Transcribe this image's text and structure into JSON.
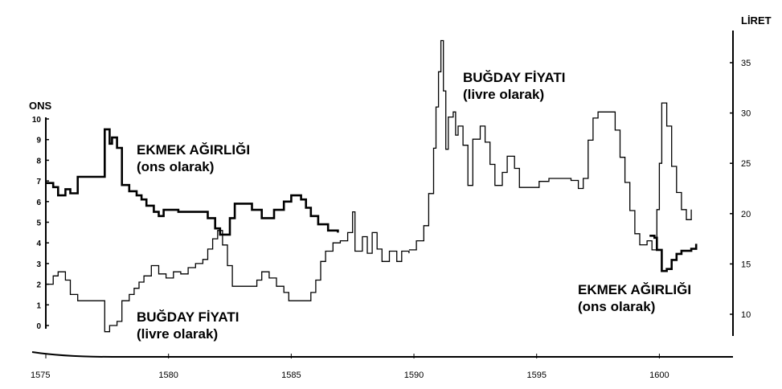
{
  "chart_data": {
    "type": "line",
    "title": "",
    "x_ticks": [
      "1575",
      "1580",
      "1585",
      "1590",
      "1595",
      "1600"
    ],
    "xlim": [
      1575,
      1603
    ],
    "y_left": {
      "label": "ONS",
      "ticks": [
        "0",
        "1",
        "2",
        "3",
        "4",
        "5",
        "6",
        "7",
        "8",
        "9",
        "10"
      ],
      "lim": [
        0,
        10
      ]
    },
    "y_right": {
      "label": "LİRET",
      "ticks": [
        "10",
        "15",
        "20",
        "25",
        "30",
        "35"
      ],
      "lim": [
        8,
        38
      ]
    },
    "annotations": {
      "bread_top": {
        "line1": "EKMEK AĞIRLIĞI",
        "line2": "(ons olarak)"
      },
      "wheat_bottom": {
        "line1": "BUĞDAY FİYATI",
        "line2": "(livre olarak)"
      },
      "wheat_top": {
        "line1": "BUĞDAY FİYATI",
        "line2": "(livre olarak)"
      },
      "bread_bottom": {
        "line1": "EKMEK AĞIRLIĞI",
        "line2": "(ons olarak)"
      }
    },
    "series": [
      {
        "axis": "left",
        "style": "thick",
        "points": [
          [
            1575.0,
            6.9
          ],
          [
            1575.3,
            6.7
          ],
          [
            1575.5,
            6.3
          ],
          [
            1575.8,
            6.6
          ],
          [
            1576.0,
            6.4
          ],
          [
            1576.3,
            7.2
          ],
          [
            1577.3,
            7.2
          ],
          [
            1577.4,
            9.5
          ],
          [
            1577.6,
            8.8
          ],
          [
            1577.7,
            9.1
          ],
          [
            1577.9,
            8.6
          ],
          [
            1578.1,
            6.8
          ],
          [
            1578.4,
            6.5
          ],
          [
            1578.7,
            6.3
          ],
          [
            1578.9,
            6.1
          ],
          [
            1579.1,
            5.8
          ],
          [
            1579.4,
            5.5
          ],
          [
            1579.6,
            5.3
          ],
          [
            1579.8,
            5.6
          ],
          [
            1580.4,
            5.5
          ],
          [
            1581.3,
            5.5
          ],
          [
            1581.6,
            5.2
          ],
          [
            1581.9,
            4.7
          ],
          [
            1582.1,
            4.4
          ],
          [
            1582.5,
            5.2
          ],
          [
            1582.7,
            5.9
          ],
          [
            1583.4,
            5.6
          ],
          [
            1583.8,
            5.2
          ],
          [
            1584.3,
            5.6
          ],
          [
            1584.7,
            6.0
          ],
          [
            1585.0,
            6.3
          ],
          [
            1585.4,
            6.1
          ],
          [
            1585.6,
            5.7
          ],
          [
            1585.8,
            5.3
          ],
          [
            1586.1,
            4.9
          ],
          [
            1586.5,
            4.6
          ],
          [
            1586.9,
            4.5
          ]
        ]
      },
      {
        "axis": "left",
        "style": "thin",
        "points": [
          [
            1575.0,
            2.0
          ],
          [
            1575.3,
            2.4
          ],
          [
            1575.5,
            2.6
          ],
          [
            1575.8,
            2.2
          ],
          [
            1576.0,
            1.5
          ],
          [
            1576.3,
            1.2
          ],
          [
            1577.2,
            1.2
          ],
          [
            1577.4,
            -0.3
          ],
          [
            1577.6,
            0.0
          ],
          [
            1577.9,
            0.2
          ],
          [
            1578.1,
            1.2
          ],
          [
            1578.4,
            1.5
          ],
          [
            1578.6,
            1.8
          ],
          [
            1578.8,
            2.1
          ],
          [
            1579.0,
            2.4
          ],
          [
            1579.3,
            2.9
          ],
          [
            1579.6,
            2.5
          ],
          [
            1579.9,
            2.3
          ],
          [
            1580.2,
            2.6
          ],
          [
            1580.5,
            2.5
          ],
          [
            1580.8,
            2.8
          ],
          [
            1581.1,
            3.0
          ],
          [
            1581.4,
            3.2
          ],
          [
            1581.6,
            3.7
          ],
          [
            1581.8,
            4.2
          ],
          [
            1582.0,
            4.6
          ],
          [
            1582.2,
            3.9
          ],
          [
            1582.4,
            2.9
          ],
          [
            1582.6,
            1.9
          ],
          [
            1583.4,
            1.9
          ],
          [
            1583.6,
            2.2
          ],
          [
            1583.8,
            2.6
          ],
          [
            1584.1,
            2.3
          ],
          [
            1584.4,
            1.9
          ],
          [
            1584.7,
            1.6
          ],
          [
            1584.9,
            1.2
          ],
          [
            1585.5,
            1.2
          ],
          [
            1585.8,
            1.6
          ],
          [
            1586.0,
            2.2
          ],
          [
            1586.2,
            3.1
          ],
          [
            1586.4,
            3.6
          ],
          [
            1586.7,
            4.0
          ],
          [
            1587.0,
            4.1
          ],
          [
            1587.3,
            4.5
          ],
          [
            1587.5,
            5.5
          ],
          [
            1587.6,
            3.6
          ],
          [
            1587.9,
            4.3
          ],
          [
            1588.1,
            3.5
          ],
          [
            1588.3,
            4.5
          ],
          [
            1588.5,
            3.7
          ],
          [
            1588.7,
            3.1
          ],
          [
            1589.0,
            3.6
          ],
          [
            1589.3,
            3.1
          ],
          [
            1589.5,
            3.6
          ],
          [
            1589.8,
            3.5
          ]
        ]
      },
      {
        "axis": "right",
        "style": "thin",
        "points": [
          [
            1589.8,
            16.4
          ],
          [
            1590.1,
            17.3
          ],
          [
            1590.4,
            18.8
          ],
          [
            1590.6,
            22.0
          ],
          [
            1590.8,
            26.5
          ],
          [
            1590.9,
            30.6
          ],
          [
            1591.0,
            34.1
          ],
          [
            1591.1,
            37.2
          ],
          [
            1591.2,
            32.2
          ],
          [
            1591.3,
            26.4
          ],
          [
            1591.4,
            29.6
          ],
          [
            1591.6,
            30.1
          ],
          [
            1591.7,
            27.8
          ],
          [
            1591.8,
            28.7
          ],
          [
            1592.0,
            26.8
          ],
          [
            1592.2,
            22.8
          ],
          [
            1592.4,
            27.4
          ],
          [
            1592.7,
            28.7
          ],
          [
            1592.9,
            27.1
          ],
          [
            1593.1,
            24.9
          ],
          [
            1593.3,
            22.8
          ],
          [
            1593.6,
            24.1
          ],
          [
            1593.8,
            25.7
          ],
          [
            1594.1,
            24.5
          ],
          [
            1594.3,
            22.6
          ],
          [
            1594.8,
            22.6
          ],
          [
            1595.1,
            23.2
          ],
          [
            1595.5,
            23.5
          ],
          [
            1596.4,
            23.3
          ],
          [
            1596.7,
            22.5
          ],
          [
            1596.9,
            23.5
          ],
          [
            1597.1,
            27.3
          ],
          [
            1597.3,
            29.5
          ],
          [
            1597.5,
            30.1
          ],
          [
            1598.0,
            30.1
          ],
          [
            1598.2,
            28.3
          ],
          [
            1598.4,
            25.6
          ],
          [
            1598.6,
            23.1
          ],
          [
            1598.8,
            20.3
          ],
          [
            1599.0,
            18.0
          ],
          [
            1599.2,
            16.9
          ],
          [
            1599.5,
            17.3
          ],
          [
            1599.7,
            16.4
          ],
          [
            1599.9,
            20.4
          ],
          [
            1600.0,
            25.0
          ],
          [
            1600.1,
            31.0
          ],
          [
            1600.3,
            28.7
          ],
          [
            1600.5,
            24.7
          ],
          [
            1600.7,
            22.1
          ],
          [
            1600.9,
            20.4
          ],
          [
            1601.1,
            19.4
          ],
          [
            1601.3,
            20.4
          ]
        ]
      },
      {
        "axis": "right",
        "style": "thick",
        "points": [
          [
            1599.6,
            17.8
          ],
          [
            1599.8,
            17.6
          ],
          [
            1599.9,
            16.4
          ],
          [
            1600.1,
            14.3
          ],
          [
            1600.3,
            14.5
          ],
          [
            1600.5,
            15.4
          ],
          [
            1600.7,
            16.0
          ],
          [
            1600.9,
            16.3
          ],
          [
            1601.1,
            16.3
          ],
          [
            1601.3,
            16.5
          ],
          [
            1601.5,
            17.0
          ]
        ]
      }
    ]
  }
}
